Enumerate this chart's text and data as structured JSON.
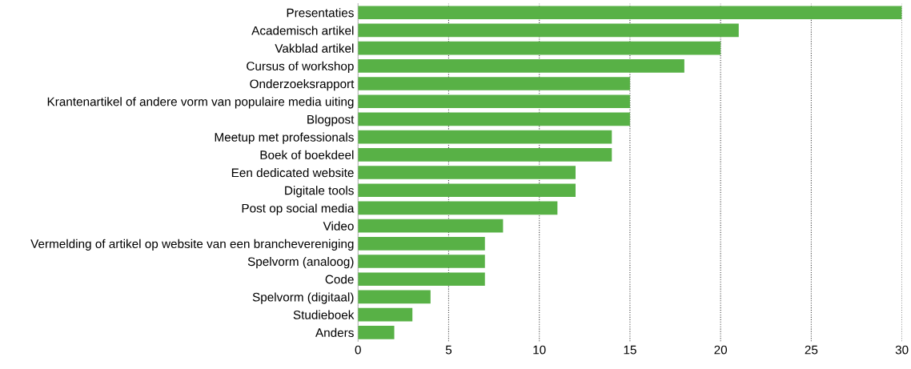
{
  "chart_data": {
    "type": "bar",
    "orientation": "horizontal",
    "categories": [
      "Presentaties",
      "Academisch artikel",
      "Vakblad artikel",
      "Cursus of workshop",
      "Onderzoeksrapport",
      "Krantenartikel of andere vorm van populaire media uiting",
      "Blogpost",
      "Meetup met professionals",
      "Boek of boekdeel",
      "Een dedicated website",
      "Digitale tools",
      "Post op social media",
      "Video",
      "Vermelding of artikel op website van een branchevereniging",
      "Spelvorm (analoog)",
      "Code",
      "Spelvorm (digitaal)",
      "Studieboek",
      "Anders"
    ],
    "values": [
      30,
      21,
      20,
      18,
      15,
      15,
      15,
      14,
      14,
      12,
      12,
      11,
      8,
      7,
      7,
      7,
      4,
      3,
      2
    ],
    "color": "#58b146",
    "xlim": [
      0,
      30
    ],
    "xticks": [
      0,
      5,
      10,
      15,
      20,
      25,
      30
    ],
    "grid": "x"
  }
}
